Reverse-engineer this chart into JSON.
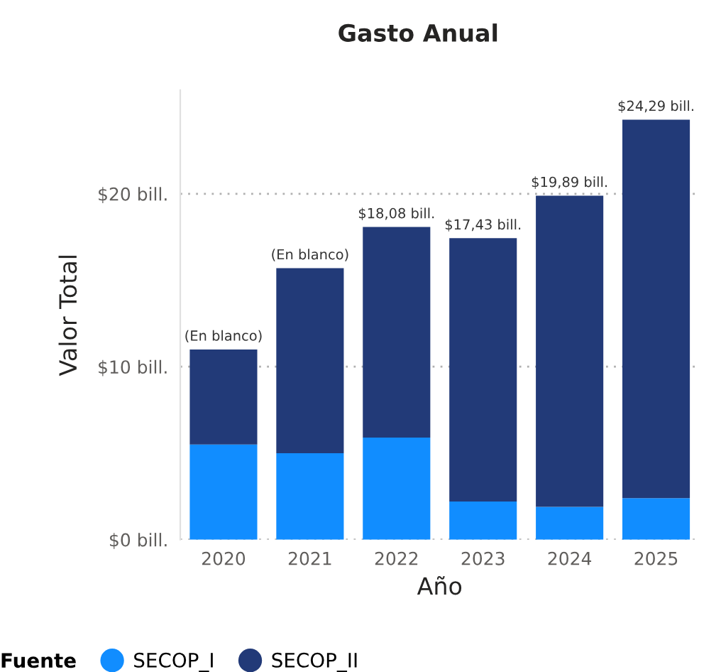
{
  "chart_data": {
    "type": "bar",
    "title": "Gasto Anual",
    "xlabel": "Año",
    "ylabel": "Valor Total",
    "legend_title": "Fuente",
    "categories": [
      "2020",
      "2021",
      "2022",
      "2023",
      "2024",
      "2025"
    ],
    "stacked": true,
    "series": [
      {
        "name": "SECOP_I",
        "color": "#118dff",
        "values": [
          5.5,
          5.0,
          5.9,
          2.2,
          1.9,
          2.4
        ]
      },
      {
        "name": "SECOP_II",
        "color": "#223a78",
        "values": [
          5.5,
          10.7,
          12.18,
          15.23,
          17.99,
          21.89
        ]
      }
    ],
    "totals": [
      "(En blanco)",
      "(En blanco)",
      "$18,08 bill.",
      "$17,43 bill.",
      "$19,89 bill.",
      "$24,29 bill."
    ],
    "ylim": [
      0,
      26
    ],
    "yticks": [
      {
        "value": 0,
        "label": "$0 bill."
      },
      {
        "value": 10,
        "label": "$10 bill."
      },
      {
        "value": 20,
        "label": "$20 bill."
      }
    ],
    "grid": "y",
    "legend": "bottom"
  }
}
